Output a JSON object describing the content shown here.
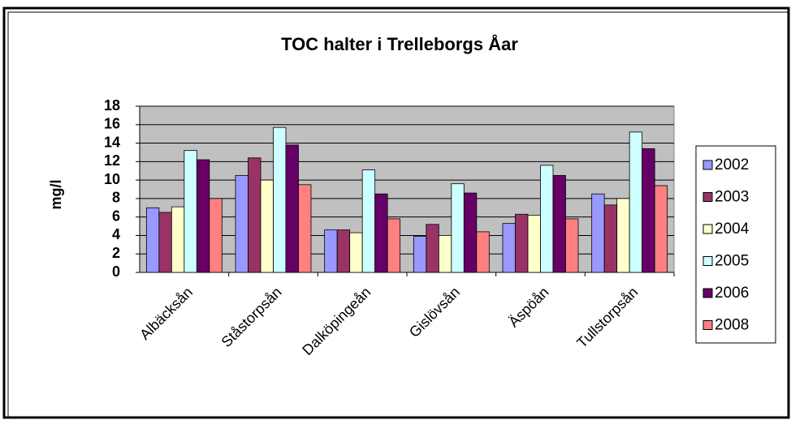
{
  "chart_data": {
    "type": "bar",
    "title": "TOC halter i Trelleborgs Åar",
    "y_label": "mg/l",
    "categories": [
      "Albäcksån",
      "Ståstorpsån",
      "Dalköpingeån",
      "Gislövsån",
      "Äspöån",
      "Tullstorpsån"
    ],
    "series": [
      {
        "name": "2002",
        "color": "#9999ff",
        "values": [
          7.0,
          10.5,
          4.6,
          3.9,
          5.3,
          8.5
        ]
      },
      {
        "name": "2003",
        "color": "#993366",
        "values": [
          6.5,
          12.4,
          4.6,
          5.2,
          6.3,
          7.3
        ]
      },
      {
        "name": "2004",
        "color": "#ffffcc",
        "values": [
          7.1,
          10.0,
          4.3,
          4.0,
          6.2,
          8.0
        ]
      },
      {
        "name": "2005",
        "color": "#ccffff",
        "values": [
          13.2,
          15.7,
          11.1,
          9.6,
          11.6,
          15.2
        ]
      },
      {
        "name": "2006",
        "color": "#660066",
        "values": [
          12.2,
          13.8,
          8.5,
          8.6,
          10.5,
          13.4
        ]
      },
      {
        "name": "2008",
        "color": "#ff8080",
        "values": [
          8.0,
          9.5,
          5.8,
          4.4,
          5.8,
          9.4
        ]
      }
    ],
    "ylim": [
      0,
      18
    ],
    "yticks": [
      0,
      2,
      4,
      6,
      8,
      10,
      12,
      14,
      16,
      18
    ],
    "grid": true,
    "legend": "right"
  }
}
